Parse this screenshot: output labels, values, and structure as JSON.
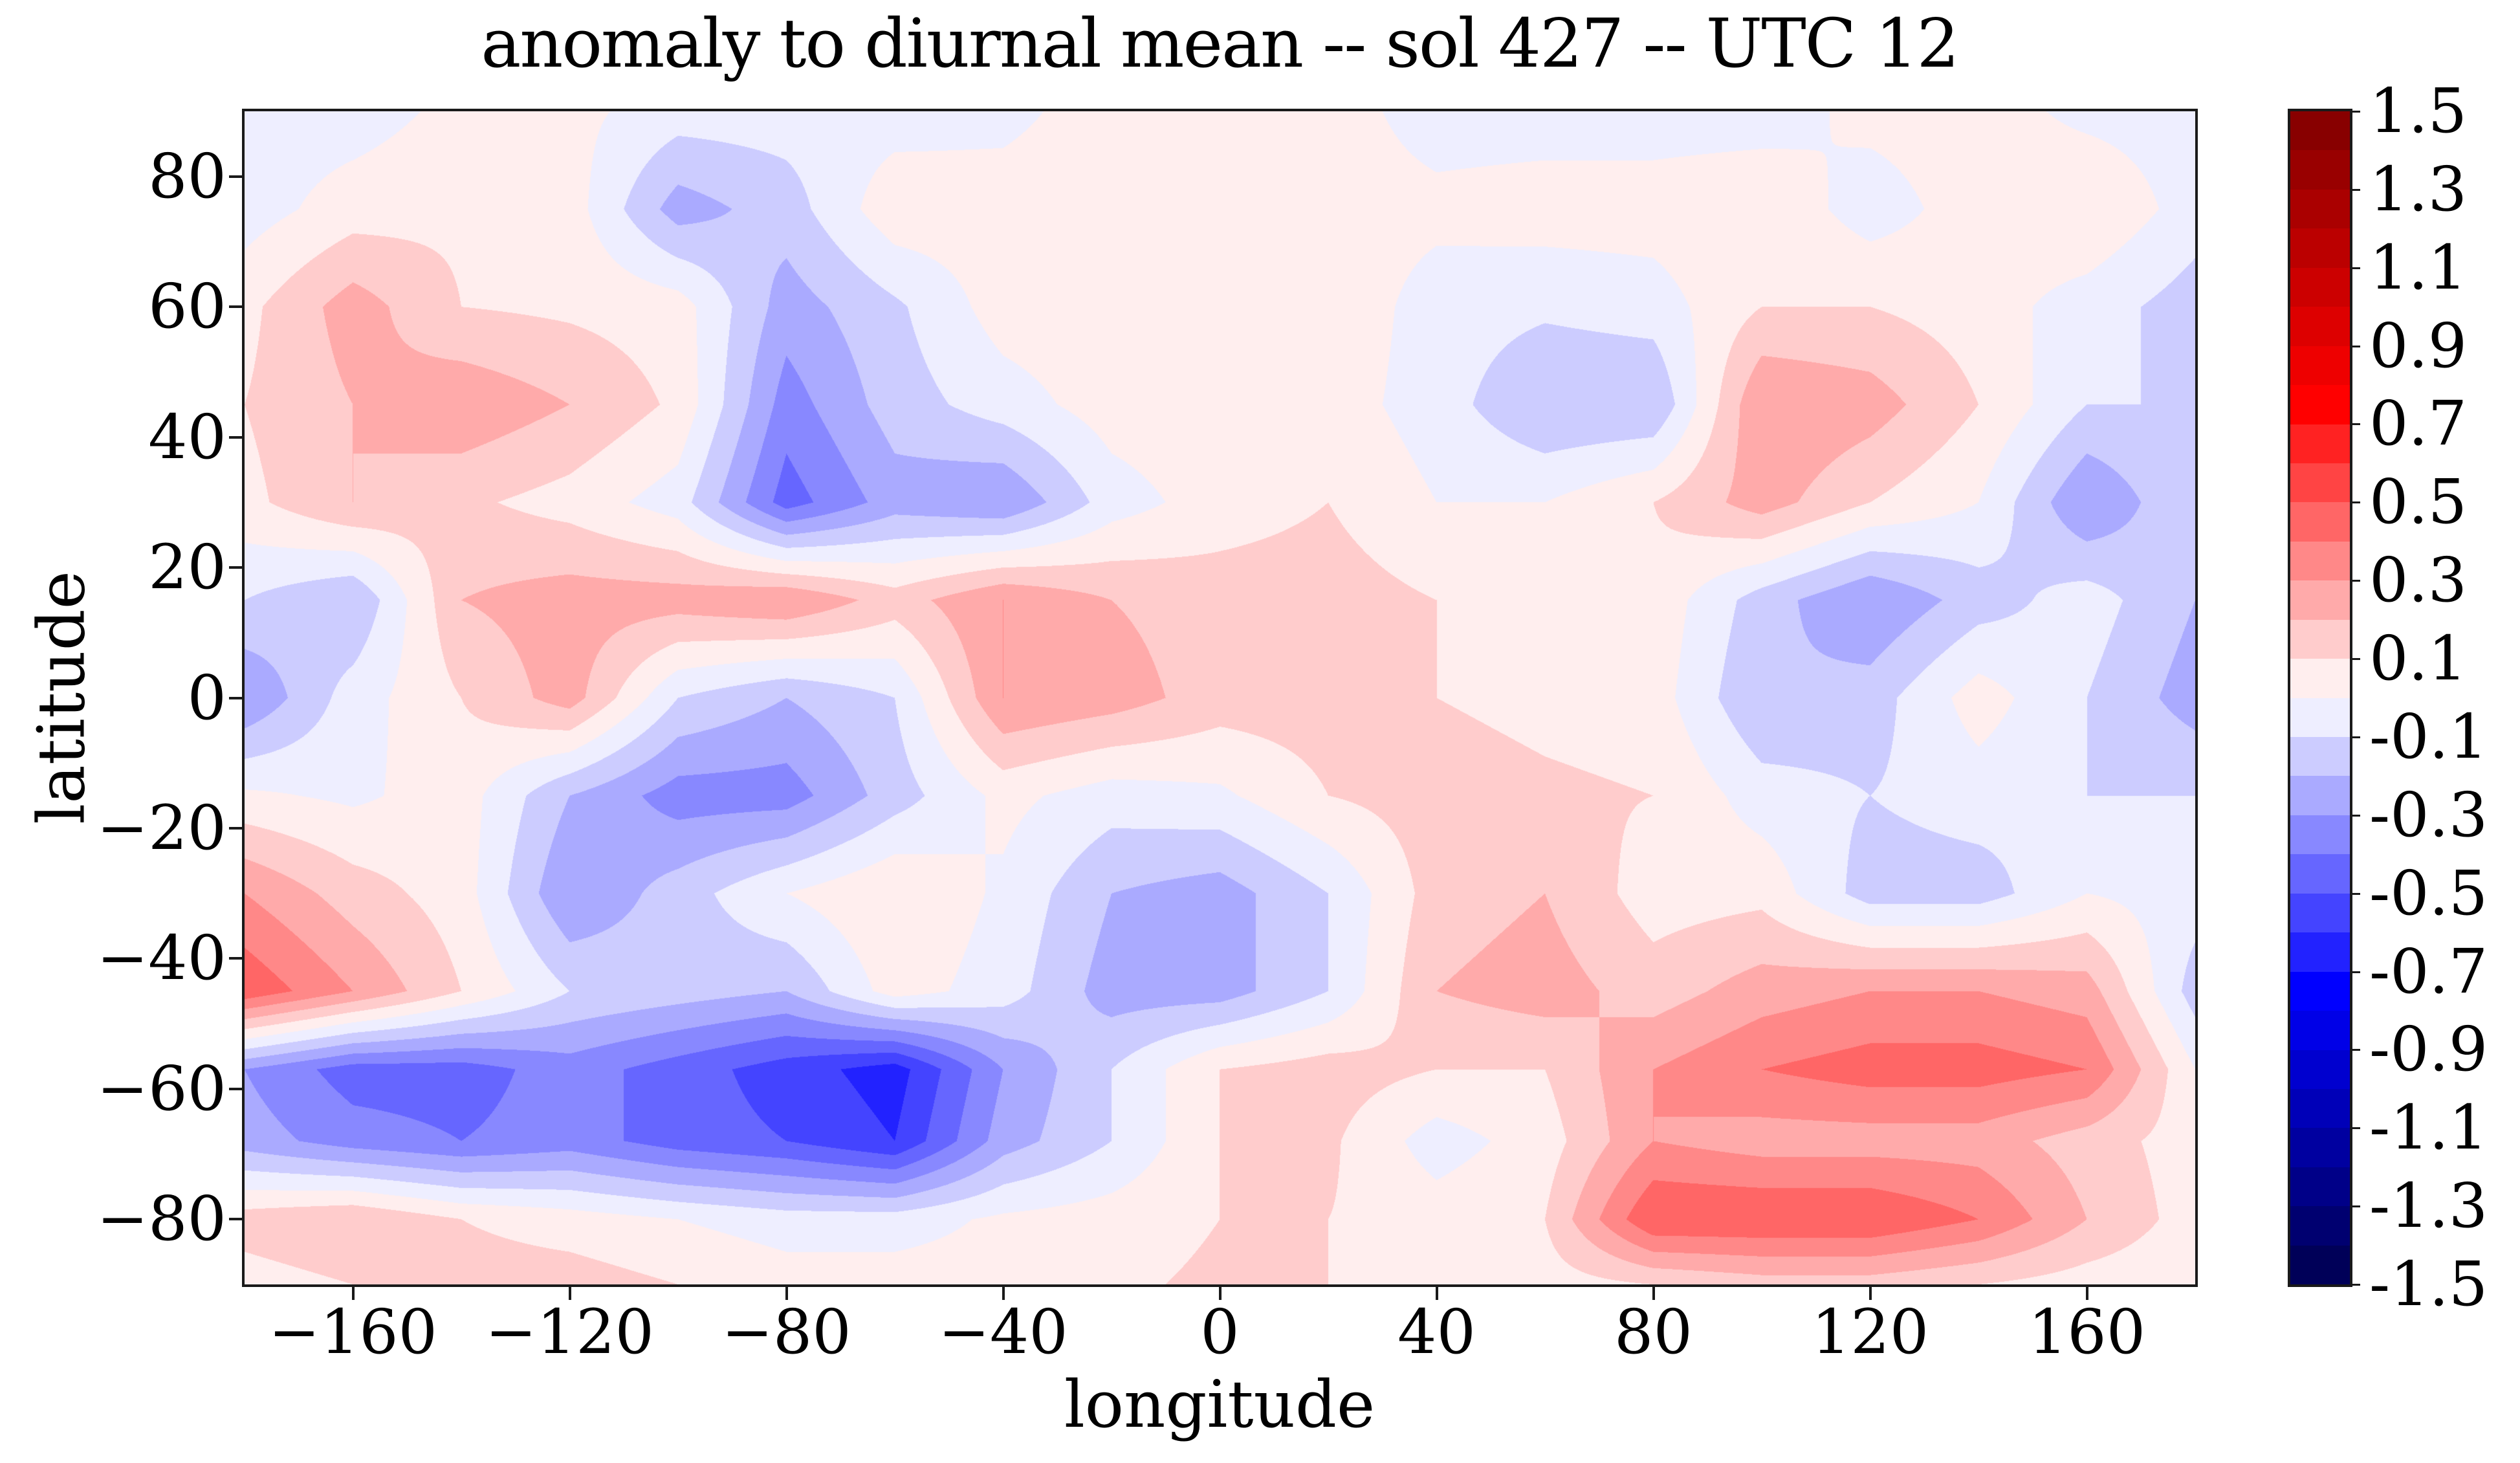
{
  "figure": {
    "title": "anomaly to diurnal mean -- sol 427 -- UTC 12"
  },
  "axes": {
    "xlabel": "longitude",
    "ylabel": "latitude",
    "xlim": [
      -180,
      180
    ],
    "ylim": [
      -90,
      90
    ],
    "x_ticks": [
      -160,
      -120,
      -80,
      -40,
      0,
      40,
      80,
      120,
      160
    ],
    "y_ticks": [
      80,
      60,
      40,
      20,
      0,
      -20,
      -40,
      -60,
      -80
    ]
  },
  "colorbar": {
    "tick_labels": [
      "1.5",
      "1.3",
      "1.1",
      "0.9",
      "0.7",
      "0.5",
      "0.3",
      "0.1",
      "-0.1",
      "-0.3",
      "-0.5",
      "-0.7",
      "-0.9",
      "-1.1",
      "-1.3",
      "-1.5"
    ],
    "tick_values": [
      1.5,
      1.3,
      1.1,
      0.9,
      0.7,
      0.5,
      0.3,
      0.1,
      -0.1,
      -0.3,
      -0.5,
      -0.7,
      -0.9,
      -1.1,
      -1.3,
      -1.5
    ],
    "vmin": -1.5,
    "vmax": 1.5,
    "n_segments": 30,
    "colormap": "seismic",
    "top_color": "#880000",
    "bottom_color": "#000058",
    "zero_positive_color": "#ffeeee",
    "zero_negative_color": "#eeeeff"
  },
  "chart_data": {
    "type": "heatmap",
    "rendered_as": "filled_contour",
    "title": "anomaly to diurnal mean -- sol 427 -- UTC 12",
    "xlabel": "longitude",
    "ylabel": "latitude",
    "xlim": [
      -180,
      180
    ],
    "ylim": [
      -90,
      90
    ],
    "levels": {
      "min": -1.5,
      "max": 1.5,
      "step": 0.1
    },
    "colormap": "seismic",
    "x_lon": [
      -180,
      -160,
      -140,
      -120,
      -100,
      -80,
      -60,
      -40,
      -20,
      0,
      20,
      40,
      60,
      80,
      100,
      120,
      140,
      160,
      180
    ],
    "y_lat": [
      90,
      75,
      60,
      45,
      30,
      15,
      0,
      -15,
      -30,
      -45,
      -57,
      -68,
      -80,
      -90
    ],
    "z_anomaly": [
      [
        -0.05,
        -0.05,
        0.03,
        0.03,
        -0.05,
        -0.05,
        -0.05,
        -0.03,
        0.05,
        0.05,
        0.05,
        -0.05,
        -0.05,
        -0.05,
        -0.05,
        0.03,
        0.05,
        -0.03,
        -0.05
      ],
      [
        -0.05,
        0.05,
        0.08,
        0.05,
        -0.25,
        -0.15,
        0.07,
        0.05,
        0.07,
        0.08,
        0.05,
        0.03,
        0.05,
        0.05,
        0.08,
        -0.05,
        0.05,
        0.1,
        -0.05
      ],
      [
        0.07,
        0.25,
        0.1,
        0.08,
        0.05,
        -0.25,
        -0.12,
        0.05,
        0.07,
        0.1,
        0.08,
        -0.05,
        -0.08,
        -0.05,
        0.1,
        0.1,
        0.05,
        -0.05,
        -0.15
      ],
      [
        0.1,
        0.2,
        0.28,
        0.2,
        0.08,
        -0.35,
        -0.15,
        -0.05,
        0.05,
        0.07,
        0.05,
        -0.05,
        -0.2,
        -0.2,
        0.3,
        0.25,
        0.1,
        -0.1,
        -0.1
      ],
      [
        0.07,
        0.2,
        0.12,
        0.06,
        -0.05,
        -0.45,
        -0.25,
        -0.3,
        -0.05,
        0.05,
        0.1,
        0.0,
        0.0,
        0.1,
        0.25,
        0.1,
        0.0,
        -0.3,
        -0.1
      ],
      [
        -0.1,
        -0.2,
        0.2,
        0.25,
        0.25,
        0.3,
        0.15,
        0.3,
        0.2,
        0.15,
        0.15,
        0.1,
        0.05,
        0.07,
        -0.15,
        -0.3,
        -0.15,
        -0.05,
        -0.2
      ],
      [
        -0.3,
        -0.05,
        0.1,
        0.25,
        -0.1,
        -0.2,
        -0.1,
        0.3,
        0.25,
        0.15,
        0.15,
        0.1,
        0.07,
        0.05,
        -0.2,
        -0.15,
        0.05,
        -0.1,
        -0.25
      ],
      [
        0.02,
        -0.02,
        0.05,
        -0.2,
        -0.35,
        -0.35,
        -0.15,
        0.03,
        -0.05,
        -0.02,
        0.1,
        0.15,
        0.12,
        0.1,
        -0.05,
        -0.1,
        -0.05,
        -0.1,
        -0.1
      ],
      [
        0.3,
        0.15,
        0.05,
        -0.3,
        -0.15,
        0.0,
        0.1,
        -0.02,
        -0.2,
        -0.25,
        -0.1,
        0.15,
        0.2,
        0.05,
        0.07,
        -0.15,
        -0.15,
        0.0,
        -0.05
      ],
      [
        0.48,
        0.3,
        0.1,
        -0.1,
        -0.15,
        -0.2,
        0.05,
        -0.05,
        -0.25,
        -0.25,
        -0.1,
        0.2,
        0.25,
        0.15,
        0.25,
        0.3,
        0.3,
        0.25,
        -0.15
      ],
      [
        -0.3,
        -0.45,
        -0.45,
        -0.35,
        -0.45,
        -0.55,
        -0.65,
        -0.3,
        -0.1,
        0.1,
        0.15,
        0.1,
        0.1,
        0.3,
        0.4,
        0.45,
        0.45,
        0.4,
        0.0
      ],
      [
        -0.25,
        -0.35,
        -0.4,
        -0.35,
        -0.45,
        -0.5,
        -0.6,
        -0.25,
        -0.1,
        0.1,
        0.12,
        -0.05,
        0.05,
        0.3,
        0.25,
        0.25,
        0.25,
        0.15,
        0.05
      ],
      [
        0.15,
        0.2,
        0.1,
        0.05,
        0.0,
        -0.05,
        -0.05,
        0.02,
        0.05,
        0.1,
        0.1,
        0.05,
        0.1,
        0.5,
        0.5,
        0.5,
        0.4,
        0.2,
        0.05
      ],
      [
        0.05,
        0.1,
        0.15,
        0.15,
        0.1,
        0.05,
        0.05,
        0.05,
        0.08,
        0.12,
        0.1,
        0.05,
        0.05,
        0.1,
        0.15,
        0.15,
        0.1,
        0.05,
        0.02
      ]
    ]
  }
}
